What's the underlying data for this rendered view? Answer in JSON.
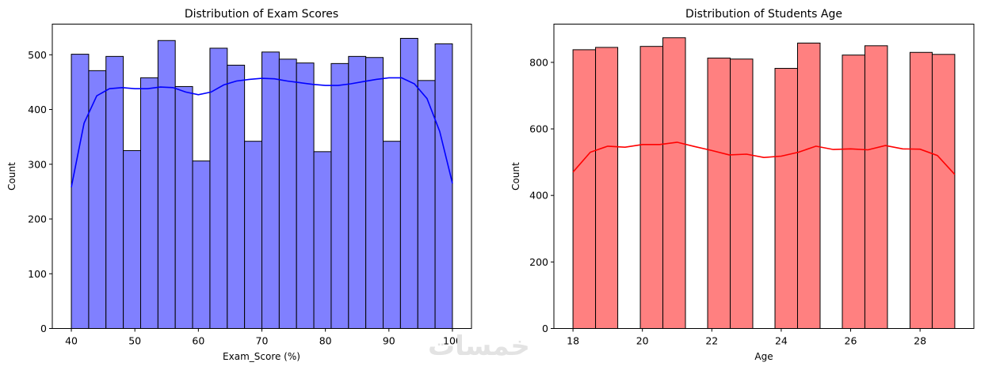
{
  "watermark": "خمسات",
  "chart_data": [
    {
      "type": "histogram",
      "title": "Distribution of Exam Scores",
      "xlabel": "Exam_Score (%)",
      "ylabel": "Count",
      "xlim": [
        37.0,
        103.0
      ],
      "ylim": [
        0,
        556
      ],
      "xticks": [
        40,
        50,
        60,
        70,
        80,
        90,
        100
      ],
      "yticks": [
        0,
        100,
        200,
        300,
        400,
        500
      ],
      "bar_color": "#8080ff",
      "edge_color": "#000000",
      "kde_color": "#0000ff",
      "bins": [
        {
          "x0": 40.0,
          "x1": 42.73,
          "count": 501
        },
        {
          "x0": 42.73,
          "x1": 45.45,
          "count": 471
        },
        {
          "x0": 45.45,
          "x1": 48.18,
          "count": 497
        },
        {
          "x0": 48.18,
          "x1": 50.91,
          "count": 325
        },
        {
          "x0": 50.91,
          "x1": 53.64,
          "count": 458
        },
        {
          "x0": 53.64,
          "x1": 56.36,
          "count": 526
        },
        {
          "x0": 56.36,
          "x1": 59.09,
          "count": 442
        },
        {
          "x0": 59.09,
          "x1": 61.82,
          "count": 306
        },
        {
          "x0": 61.82,
          "x1": 64.55,
          "count": 512
        },
        {
          "x0": 64.55,
          "x1": 67.27,
          "count": 481
        },
        {
          "x0": 67.27,
          "x1": 70.0,
          "count": 342
        },
        {
          "x0": 70.0,
          "x1": 72.73,
          "count": 505
        },
        {
          "x0": 72.73,
          "x1": 75.45,
          "count": 492
        },
        {
          "x0": 75.45,
          "x1": 78.18,
          "count": 485
        },
        {
          "x0": 78.18,
          "x1": 80.91,
          "count": 323
        },
        {
          "x0": 80.91,
          "x1": 83.64,
          "count": 484
        },
        {
          "x0": 83.64,
          "x1": 86.36,
          "count": 497
        },
        {
          "x0": 86.36,
          "x1": 89.09,
          "count": 495
        },
        {
          "x0": 89.09,
          "x1": 91.82,
          "count": 342
        },
        {
          "x0": 91.82,
          "x1": 94.55,
          "count": 530
        },
        {
          "x0": 94.55,
          "x1": 97.27,
          "count": 453
        },
        {
          "x0": 97.27,
          "x1": 100.0,
          "count": 520
        }
      ],
      "kde": {
        "x": [
          40,
          42,
          44,
          46,
          48,
          50,
          52,
          54,
          56,
          58,
          60,
          62,
          64,
          66,
          68,
          70,
          72,
          74,
          76,
          78,
          80,
          82,
          84,
          86,
          88,
          90,
          92,
          94,
          96,
          98,
          100
        ],
        "y": [
          258,
          375,
          425,
          438,
          440,
          438,
          438,
          441,
          440,
          432,
          427,
          432,
          445,
          452,
          455,
          457,
          456,
          452,
          449,
          446,
          444,
          444,
          447,
          451,
          455,
          458,
          458,
          447,
          420,
          360,
          265
        ]
      }
    },
    {
      "type": "histogram",
      "title": "Distribution of Students Age",
      "xlabel": "Age",
      "ylabel": "Count",
      "xlim": [
        17.45,
        29.55
      ],
      "ylim": [
        0,
        915
      ],
      "xticks": [
        18,
        20,
        22,
        24,
        26,
        28
      ],
      "yticks": [
        0,
        200,
        400,
        600,
        800
      ],
      "bar_color": "#ff8080",
      "edge_color": "#000000",
      "kde_color": "#ff0000",
      "bins": [
        {
          "x0": 18.0,
          "x1": 18.65,
          "count": 838
        },
        {
          "x0": 18.65,
          "x1": 19.29,
          "count": 845
        },
        {
          "x0": 19.29,
          "x1": 19.94,
          "count": 0
        },
        {
          "x0": 19.94,
          "x1": 20.59,
          "count": 848
        },
        {
          "x0": 20.59,
          "x1": 21.24,
          "count": 874
        },
        {
          "x0": 21.24,
          "x1": 21.88,
          "count": 0
        },
        {
          "x0": 21.88,
          "x1": 22.53,
          "count": 813
        },
        {
          "x0": 22.53,
          "x1": 23.18,
          "count": 810
        },
        {
          "x0": 23.18,
          "x1": 23.82,
          "count": 0
        },
        {
          "x0": 23.82,
          "x1": 24.47,
          "count": 782
        },
        {
          "x0": 24.47,
          "x1": 25.12,
          "count": 858
        },
        {
          "x0": 25.12,
          "x1": 25.76,
          "count": 0
        },
        {
          "x0": 25.76,
          "x1": 26.41,
          "count": 822
        },
        {
          "x0": 26.41,
          "x1": 27.06,
          "count": 850
        },
        {
          "x0": 27.06,
          "x1": 27.71,
          "count": 0
        },
        {
          "x0": 27.71,
          "x1": 28.35,
          "count": 830
        },
        {
          "x0": 28.35,
          "x1": 29.0,
          "count": 824
        }
      ],
      "kde": {
        "x": [
          18,
          18.5,
          19,
          19.5,
          20,
          20.5,
          21,
          21.5,
          22,
          22.5,
          23,
          23.5,
          24,
          24.5,
          25,
          25.5,
          26,
          26.5,
          27,
          27.5,
          28,
          28.5,
          29
        ],
        "y": [
          470,
          530,
          548,
          545,
          553,
          553,
          560,
          547,
          535,
          522,
          524,
          514,
          518,
          530,
          548,
          538,
          540,
          537,
          550,
          540,
          539,
          520,
          463
        ]
      }
    }
  ]
}
